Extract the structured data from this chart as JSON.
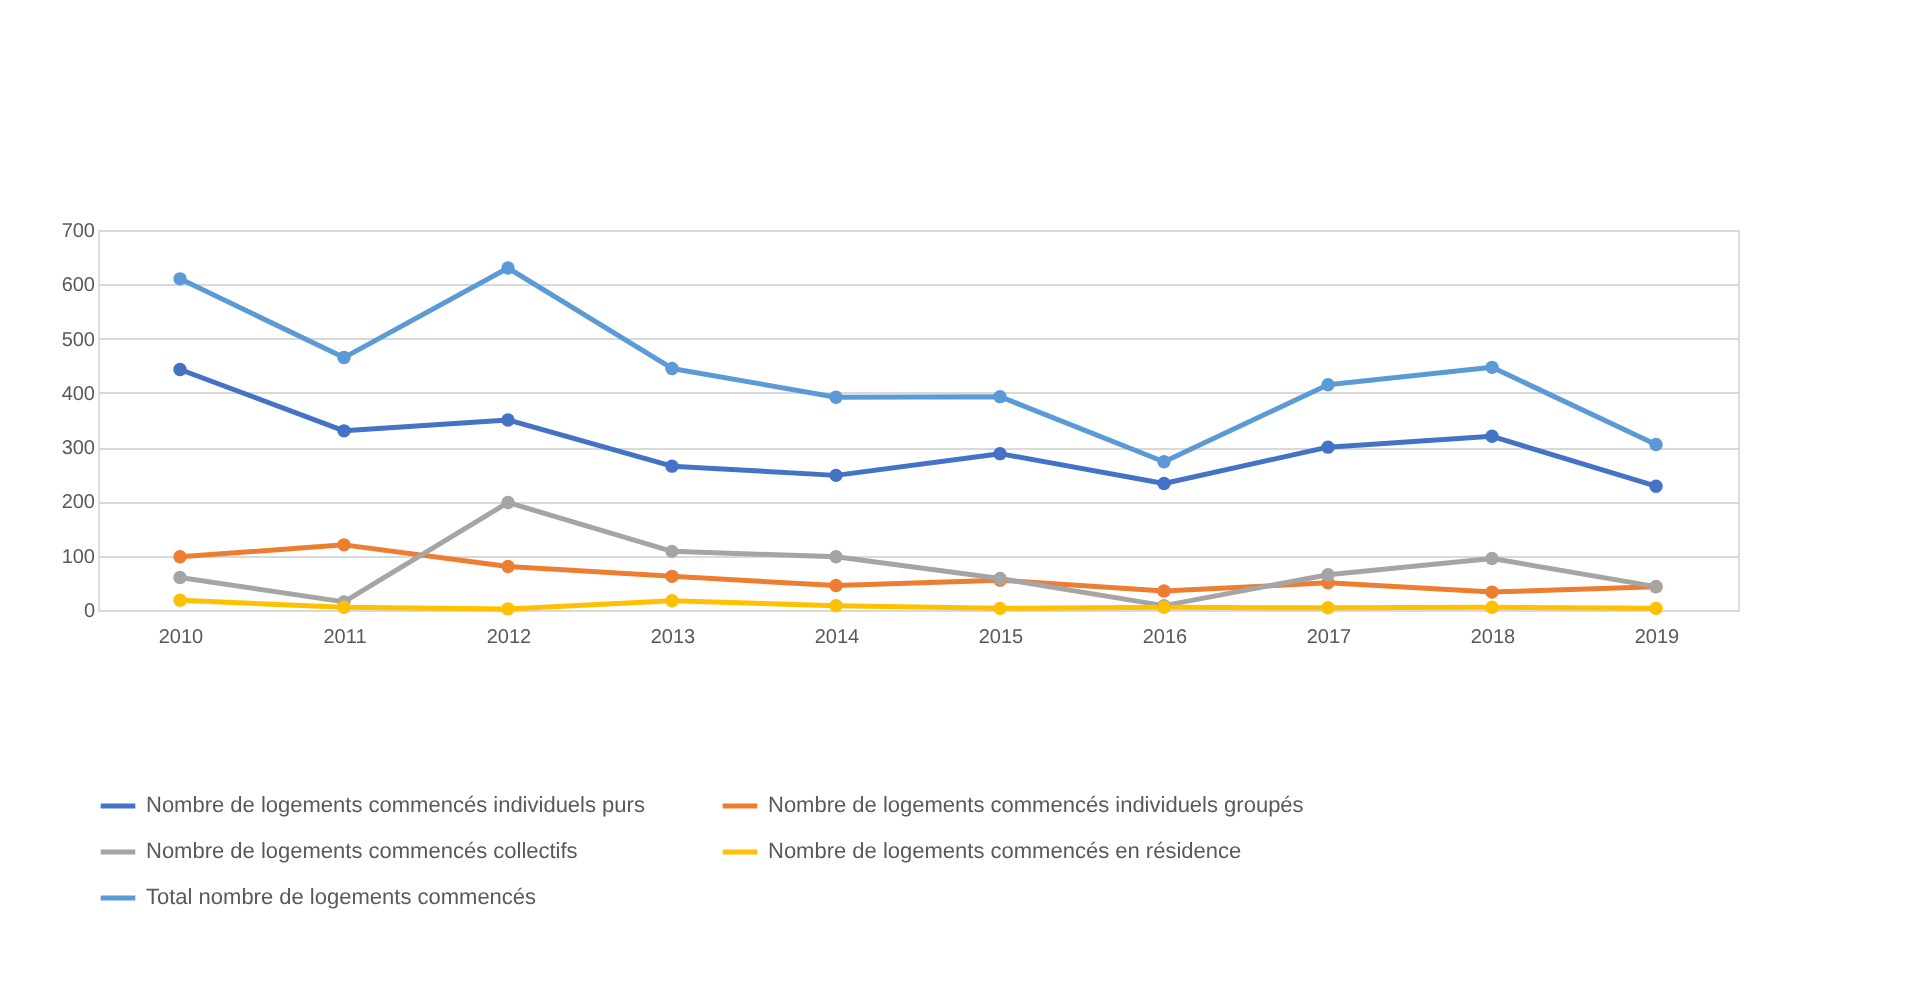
{
  "chart_data": {
    "type": "line",
    "categories": [
      "2010",
      "2011",
      "2012",
      "2013",
      "2014",
      "2015",
      "2016",
      "2017",
      "2018",
      "2019"
    ],
    "series": [
      {
        "name": "Nombre de logements  commencés individuels purs",
        "color": "#4472c4",
        "values": [
          443,
          330,
          350,
          265,
          248,
          288,
          233,
          300,
          320,
          228
        ]
      },
      {
        "name": "Nombre de logements  commencés individuels groupés",
        "color": "#ed7d31",
        "values": [
          98,
          120,
          80,
          62,
          45,
          55,
          35,
          50,
          33,
          43
        ]
      },
      {
        "name": "Nombre de logements  commencés collectifs",
        "color": "#a5a5a5",
        "values": [
          60,
          15,
          198,
          108,
          98,
          58,
          8,
          65,
          95,
          43
        ]
      },
      {
        "name": "Nombre de logements  commencés en résidence",
        "color": "#ffc000",
        "values": [
          18,
          5,
          2,
          17,
          8,
          3,
          5,
          4,
          5,
          3
        ]
      },
      {
        "name": "Total nombre de logements commencés",
        "color": "#5b9bd5",
        "values": [
          610,
          465,
          630,
          445,
          392,
          393,
          273,
          415,
          447,
          305
        ]
      }
    ],
    "ylim": [
      0,
      700
    ],
    "yticks": [
      0,
      100,
      200,
      300,
      400,
      500,
      600,
      700
    ],
    "grid": "y",
    "legend": "bottom",
    "marker": "circle",
    "line_style": "solid"
  }
}
